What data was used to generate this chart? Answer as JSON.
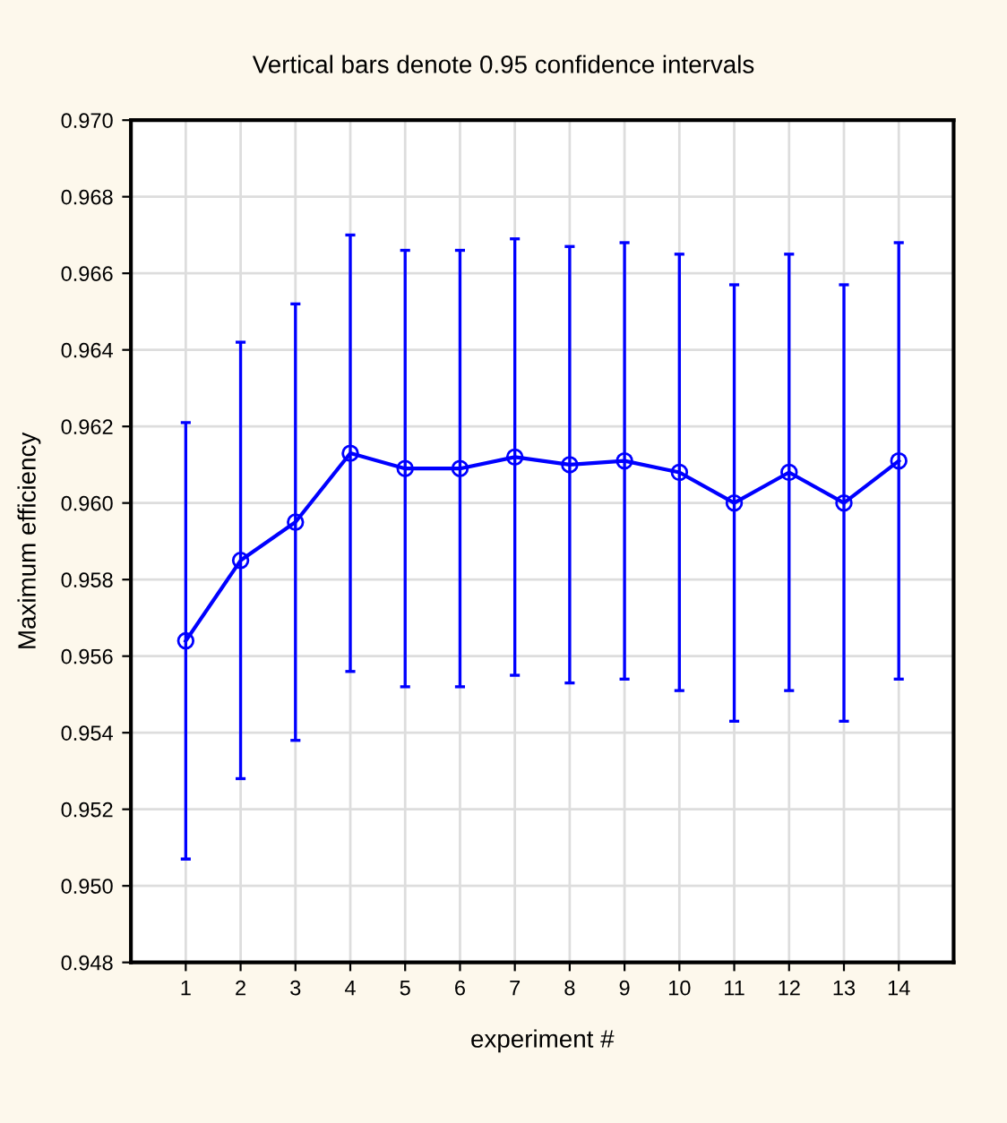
{
  "chart_data": {
    "type": "line",
    "title": "Vertical bars denote 0.95 confidence intervals",
    "xlabel": "experiment #",
    "ylabel": "Maximum efficiency",
    "categories": [
      "1",
      "2",
      "3",
      "4",
      "5",
      "6",
      "7",
      "8",
      "9",
      "10",
      "11",
      "12",
      "13",
      "14"
    ],
    "series": [
      {
        "color": "#0000ff",
        "values": [
          0.9564,
          0.9585,
          0.9595,
          0.9613,
          0.9609,
          0.9609,
          0.9612,
          0.961,
          0.9611,
          0.9608,
          0.96,
          0.9608,
          0.96,
          0.9611
        ],
        "errors": [
          0.0057,
          0.0057,
          0.0057,
          0.0057,
          0.0057,
          0.0057,
          0.0057,
          0.0057,
          0.0057,
          0.0057,
          0.0057,
          0.0057,
          0.0057,
          0.0057
        ]
      }
    ],
    "ylim": [
      0.948,
      0.97
    ],
    "yticks": [
      0.948,
      {
        "value": 0.95,
        "label": "0.950"
      },
      0.952,
      0.954,
      0.956,
      0.958,
      {
        "value": 0.96,
        "label": "0.960"
      },
      0.962,
      0.964,
      0.966,
      0.968,
      {
        "value": 0.97,
        "label": "0.970"
      }
    ],
    "grid": true,
    "marker": "circle",
    "line_style": "solid",
    "legend": false
  }
}
